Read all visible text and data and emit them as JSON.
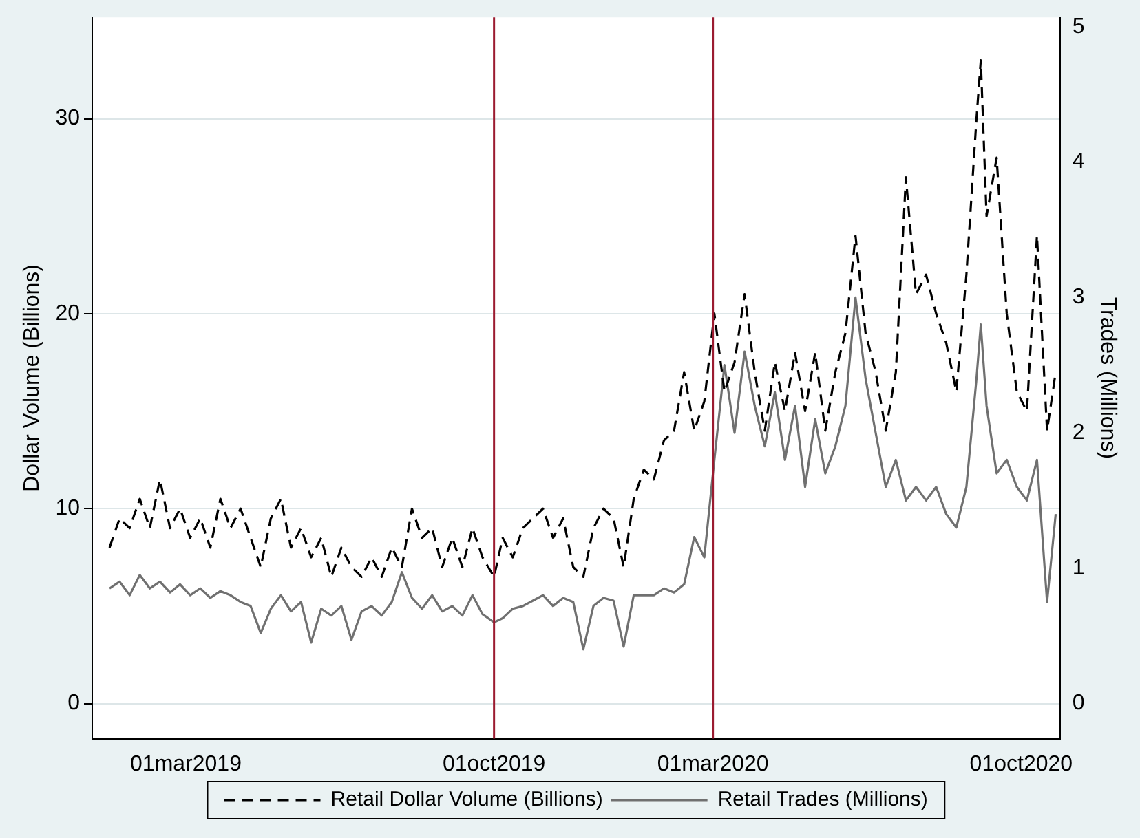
{
  "chart_data": {
    "type": "line",
    "ylabel": "Dollar Volume (Billions)",
    "y2label": "Trades (Millions)",
    "x": [
      "2019-01-07",
      "2019-01-14",
      "2019-01-21",
      "2019-01-28",
      "2019-02-04",
      "2019-02-11",
      "2019-02-18",
      "2019-02-25",
      "2019-03-04",
      "2019-03-11",
      "2019-03-18",
      "2019-03-25",
      "2019-04-01",
      "2019-04-08",
      "2019-04-15",
      "2019-04-22",
      "2019-04-29",
      "2019-05-06",
      "2019-05-13",
      "2019-05-20",
      "2019-05-27",
      "2019-06-03",
      "2019-06-10",
      "2019-06-17",
      "2019-06-24",
      "2019-07-01",
      "2019-07-08",
      "2019-07-15",
      "2019-07-22",
      "2019-07-29",
      "2019-08-05",
      "2019-08-12",
      "2019-08-19",
      "2019-08-26",
      "2019-09-02",
      "2019-09-09",
      "2019-09-16",
      "2019-09-23",
      "2019-10-01",
      "2019-10-07",
      "2019-10-14",
      "2019-10-21",
      "2019-10-28",
      "2019-11-04",
      "2019-11-11",
      "2019-11-18",
      "2019-11-25",
      "2019-12-02",
      "2019-12-09",
      "2019-12-16",
      "2019-12-23",
      "2019-12-30",
      "2020-01-06",
      "2020-01-13",
      "2020-01-20",
      "2020-01-27",
      "2020-02-03",
      "2020-02-10",
      "2020-02-17",
      "2020-02-24",
      "2020-03-02",
      "2020-03-09",
      "2020-03-16",
      "2020-03-23",
      "2020-03-30",
      "2020-04-06",
      "2020-04-13",
      "2020-04-20",
      "2020-04-27",
      "2020-05-04",
      "2020-05-11",
      "2020-05-18",
      "2020-05-25",
      "2020-06-01",
      "2020-06-08",
      "2020-06-15",
      "2020-06-22",
      "2020-06-29",
      "2020-07-06",
      "2020-07-13",
      "2020-07-20",
      "2020-07-27",
      "2020-08-03",
      "2020-08-10",
      "2020-08-17",
      "2020-08-24",
      "2020-08-31",
      "2020-09-03",
      "2020-09-07",
      "2020-09-14",
      "2020-09-21",
      "2020-09-28",
      "2020-10-05",
      "2020-10-12",
      "2020-10-19",
      "2020-10-25"
    ],
    "series": [
      {
        "name": "Retail Dollar Volume (Billions)",
        "color": "#000000",
        "line_style": "dashed",
        "values": [
          8.0,
          9.5,
          9.0,
          10.5,
          9.0,
          11.5,
          9.0,
          10.0,
          8.5,
          9.5,
          8.0,
          10.5,
          9.0,
          10.0,
          8.5,
          7.0,
          9.5,
          10.5,
          8.0,
          9.0,
          7.5,
          8.5,
          6.5,
          8.0,
          7.0,
          6.5,
          7.5,
          6.5,
          8.0,
          7.0,
          10.0,
          8.5,
          9.0,
          7.0,
          8.5,
          7.0,
          9.0,
          7.5,
          6.5,
          8.5,
          7.5,
          9.0,
          9.5,
          10.0,
          8.5,
          9.5,
          7.0,
          6.5,
          9.0,
          10.0,
          9.5,
          7.0,
          10.5,
          12.0,
          11.5,
          13.5,
          14.0,
          17.0,
          14.0,
          15.5,
          20.0,
          16.0,
          17.5,
          21.0,
          17.0,
          14.0,
          17.5,
          15.0,
          18.0,
          15.0,
          18.0,
          14.0,
          17.0,
          19.0,
          24.0,
          19.0,
          17.0,
          14.0,
          17.0,
          27.0,
          21.0,
          22.0,
          20.0,
          18.5,
          16.0,
          22.0,
          30.0,
          33.0,
          25.0,
          28.0,
          20.0,
          16.0,
          15.0,
          24.0,
          14.0,
          17.0
        ]
      },
      {
        "name": "Retail Trades (Millions)",
        "color": "#707070",
        "line_style": "solid",
        "axis": "y2",
        "values": [
          0.85,
          0.9,
          0.8,
          0.95,
          0.85,
          0.9,
          0.82,
          0.88,
          0.8,
          0.85,
          0.78,
          0.83,
          0.8,
          0.75,
          0.72,
          0.52,
          0.7,
          0.8,
          0.68,
          0.75,
          0.45,
          0.7,
          0.65,
          0.72,
          0.47,
          0.68,
          0.72,
          0.65,
          0.75,
          0.97,
          0.78,
          0.7,
          0.8,
          0.68,
          0.72,
          0.65,
          0.8,
          0.66,
          0.6,
          0.63,
          0.7,
          0.72,
          0.76,
          0.8,
          0.72,
          0.78,
          0.75,
          0.4,
          0.72,
          0.78,
          0.76,
          0.42,
          0.8,
          0.8,
          0.8,
          0.85,
          0.82,
          0.88,
          1.23,
          1.08,
          1.8,
          2.5,
          2.0,
          2.6,
          2.2,
          1.9,
          2.3,
          1.8,
          2.2,
          1.6,
          2.1,
          1.7,
          1.9,
          2.2,
          3.0,
          2.4,
          2.0,
          1.6,
          1.8,
          1.5,
          1.6,
          1.5,
          1.6,
          1.4,
          1.3,
          1.6,
          2.4,
          2.8,
          2.2,
          1.7,
          1.8,
          1.6,
          1.5,
          1.8,
          0.75,
          1.4
        ]
      }
    ],
    "xlim": [
      "2018-12-26",
      "2020-10-28"
    ],
    "xticks": [
      {
        "value": "2019-03-01",
        "label": "01mar2019"
      },
      {
        "value": "2019-10-01",
        "label": "01oct2019"
      },
      {
        "value": "2020-03-01",
        "label": "01mar2020"
      },
      {
        "value": "2020-10-01",
        "label": "01oct2020"
      }
    ],
    "ylim": [
      -1.8,
      35.2
    ],
    "yticks": [
      0,
      10,
      20,
      30
    ],
    "y2lim": [
      -0.26,
      5.07
    ],
    "y2ticks": [
      0,
      1,
      2,
      3,
      4,
      5
    ],
    "ref_lines": [
      {
        "axis": "x",
        "value": "2019-10-01",
        "color": "#9b1b30"
      },
      {
        "axis": "x",
        "value": "2020-03-01",
        "color": "#9b1b30"
      }
    ],
    "grid": "y",
    "legend": "bottom",
    "marker": "none"
  }
}
